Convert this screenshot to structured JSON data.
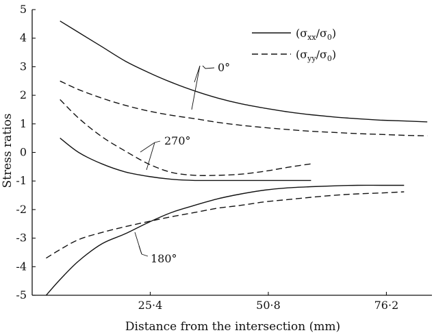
{
  "chart_data": {
    "type": "line",
    "title": "",
    "xlabel": "Distance from the intersection (mm)",
    "ylabel": "Stress ratios",
    "xlim": [
      0,
      86
    ],
    "ylim": [
      -5,
      5
    ],
    "x_ticks": [
      25.4,
      50.8,
      76.2
    ],
    "x_tick_labels": [
      "25·4",
      "50·8",
      "76·2"
    ],
    "y_ticks": [
      5,
      4,
      3,
      2,
      1,
      0,
      -1,
      -2,
      -3,
      -4,
      -5
    ],
    "y_tick_labels": [
      "5",
      "4",
      "3",
      "2",
      "1",
      "0",
      "-1",
      "-2",
      "-3",
      "-4",
      "-5"
    ],
    "legend": {
      "placement": "top-right",
      "entries": [
        {
          "style": "solid",
          "parts": [
            "(σ",
            "xx",
            "/σ",
            "0",
            ")"
          ]
        },
        {
          "style": "dashed",
          "parts": [
            "(σ",
            "yy",
            "/σ",
            "0",
            ")"
          ]
        }
      ]
    },
    "series": [
      {
        "group": "0°",
        "kind": "σxx/σ0",
        "style": "solid",
        "x": [
          6,
          10,
          15,
          20,
          25,
          30,
          35,
          40,
          45,
          50,
          55,
          60,
          65,
          70,
          75,
          80,
          85
        ],
        "y": [
          4.6,
          4.2,
          3.7,
          3.2,
          2.8,
          2.45,
          2.15,
          1.9,
          1.7,
          1.55,
          1.42,
          1.32,
          1.24,
          1.18,
          1.13,
          1.1,
          1.07
        ]
      },
      {
        "group": "0°",
        "kind": "σyy/σ0",
        "style": "dashed",
        "x": [
          6,
          10,
          15,
          20,
          25,
          30,
          35,
          40,
          45,
          50,
          55,
          60,
          65,
          70,
          75,
          80,
          85
        ],
        "y": [
          2.5,
          2.2,
          1.9,
          1.65,
          1.45,
          1.3,
          1.18,
          1.05,
          0.95,
          0.87,
          0.8,
          0.74,
          0.7,
          0.66,
          0.63,
          0.6,
          0.58
        ]
      },
      {
        "group": "270°",
        "kind": "σxx/σ0",
        "style": "solid",
        "x": [
          6,
          10,
          15,
          20,
          25,
          30,
          35,
          40,
          45,
          50,
          55,
          60
        ],
        "y": [
          0.5,
          0.0,
          -0.4,
          -0.68,
          -0.84,
          -0.94,
          -0.98,
          -0.98,
          -0.98,
          -0.98,
          -0.98,
          -0.98
        ]
      },
      {
        "group": "270°",
        "kind": "σyy/σ0",
        "style": "dashed",
        "x": [
          6,
          10,
          15,
          20,
          25,
          30,
          35,
          40,
          45,
          50,
          55,
          60
        ],
        "y": [
          1.85,
          1.2,
          0.55,
          0.05,
          -0.4,
          -0.7,
          -0.8,
          -0.8,
          -0.76,
          -0.66,
          -0.52,
          -0.4
        ]
      },
      {
        "group": "180°",
        "kind": "σxx/σ0",
        "style": "solid",
        "x": [
          3,
          6,
          10,
          15,
          20,
          25,
          30,
          35,
          40,
          45,
          50,
          55,
          60,
          65,
          70,
          75,
          80
        ],
        "y": [
          -5.0,
          -4.45,
          -3.8,
          -3.2,
          -2.85,
          -2.45,
          -2.1,
          -1.85,
          -1.62,
          -1.45,
          -1.32,
          -1.24,
          -1.2,
          -1.17,
          -1.15,
          -1.15,
          -1.15
        ]
      },
      {
        "group": "180°",
        "kind": "σyy/σ0",
        "style": "dashed",
        "x": [
          3,
          6,
          10,
          15,
          20,
          25,
          30,
          35,
          40,
          45,
          50,
          55,
          60,
          65,
          70,
          75,
          80
        ],
        "y": [
          -3.7,
          -3.4,
          -3.05,
          -2.8,
          -2.6,
          -2.42,
          -2.25,
          -2.1,
          -1.95,
          -1.85,
          -1.73,
          -1.65,
          -1.57,
          -1.5,
          -1.45,
          -1.42,
          -1.38
        ]
      }
    ],
    "annotations": [
      "0°",
      "270°",
      "180°"
    ]
  }
}
